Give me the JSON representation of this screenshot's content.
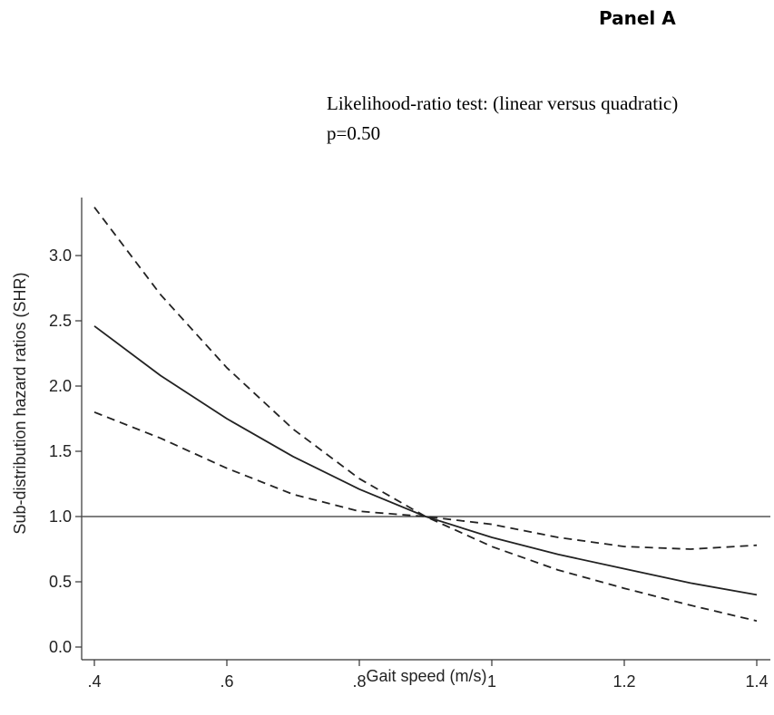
{
  "panel_label": "Panel A",
  "annotation": "Likelihood-ratio test: (linear versus quadratic) p=0.50",
  "chart_data": {
    "type": "line",
    "xlabel": "Gait speed (m/s)",
    "ylabel": "Sub-distribution hazard ratios (SHR)",
    "xlim": [
      0.4,
      1.4
    ],
    "ylim": [
      0.0,
      3.0
    ],
    "x_ticks": [
      0.4,
      0.6,
      0.8,
      1.0,
      1.2,
      1.4
    ],
    "x_tick_labels": [
      ".4",
      ".6",
      ".8",
      "1",
      "1.2",
      "1.4"
    ],
    "y_ticks": [
      0.0,
      0.5,
      1.0,
      1.5,
      2.0,
      2.5,
      3.0
    ],
    "y_tick_labels": [
      "0.0",
      "0.5",
      "1.0",
      "1.5",
      "2.0",
      "2.5",
      "3.0"
    ],
    "reference_line_y": 1.0,
    "x": [
      0.4,
      0.5,
      0.6,
      0.7,
      0.8,
      0.9,
      1.0,
      1.1,
      1.2,
      1.3,
      1.4
    ],
    "series": [
      {
        "style": "solid",
        "values": [
          2.46,
          2.08,
          1.75,
          1.46,
          1.21,
          1.0,
          0.84,
          0.71,
          0.6,
          0.49,
          0.4
        ]
      },
      {
        "style": "dashed",
        "values": [
          3.37,
          2.7,
          2.14,
          1.67,
          1.29,
          1.0,
          0.77,
          0.59,
          0.45,
          0.32,
          0.2
        ]
      },
      {
        "style": "dashed",
        "values": [
          1.8,
          1.6,
          1.37,
          1.17,
          1.04,
          1.0,
          0.94,
          0.84,
          0.77,
          0.75,
          0.78
        ]
      }
    ]
  }
}
